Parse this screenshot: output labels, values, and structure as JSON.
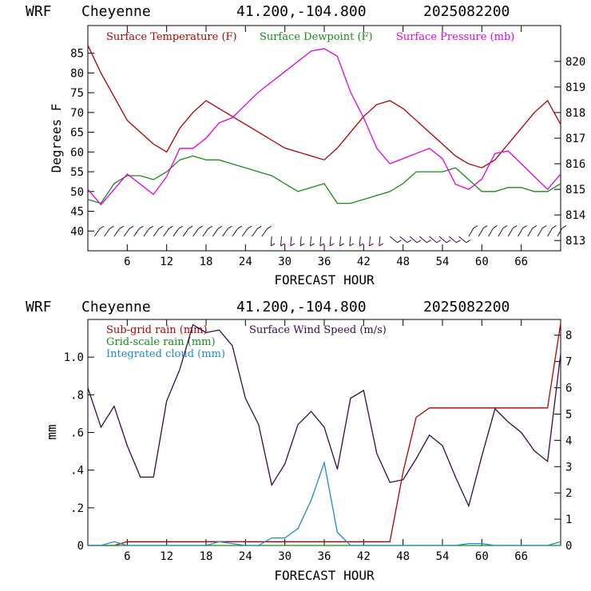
{
  "charts": [
    {
      "header": {
        "model": "WRF",
        "station": "Cheyenne",
        "coords": "41.200,-104.800",
        "run": "2025082200"
      },
      "xlabel": "FORECAST HOUR",
      "ylabel": "Degrees F",
      "x_ticks": [
        "6",
        "12",
        "18",
        "24",
        "30",
        "36",
        "42",
        "48",
        "54",
        "60",
        "66"
      ],
      "y_left_ticks": [
        "40",
        "45",
        "50",
        "55",
        "60",
        "65",
        "70",
        "75",
        "80",
        "85"
      ],
      "y_right_ticks": [
        "813",
        "814",
        "815",
        "816",
        "817",
        "818",
        "819",
        "820"
      ],
      "legend": [
        {
          "label": "Surface Temperature (F)",
          "color": "#b00000"
        },
        {
          "label": "Surface Dewpoint (F)",
          "color": "#1a8a1a"
        },
        {
          "label": "Surface Pressure (mb)",
          "color": "#e000e0"
        }
      ]
    },
    {
      "header": {
        "model": "WRF",
        "station": "Cheyenne",
        "coords": "41.200,-104.800",
        "run": "2025082200"
      },
      "xlabel": "FORECAST HOUR",
      "ylabel": "mm",
      "x_ticks": [
        "6",
        "12",
        "18",
        "24",
        "30",
        "36",
        "42",
        "48",
        "54",
        "60",
        "66"
      ],
      "y_left_ticks": [
        "0",
        ".2",
        ".4",
        ".6",
        ".8",
        "1.0"
      ],
      "y_right_ticks": [
        "0",
        "1",
        "2",
        "3",
        "4",
        "5",
        "6",
        "7",
        "8"
      ],
      "legend": [
        {
          "label": "Sub-grid rain (mm)",
          "color": "#b00000"
        },
        {
          "label": "Surface Wind Speed (m/s)",
          "color": "#3a0a4a"
        },
        {
          "label": "Grid-scale rain (mm)",
          "color": "#1a8a1a"
        },
        {
          "label": "Integrated cloud (mm)",
          "color": "#1e8ad0"
        }
      ]
    }
  ],
  "chart_data": [
    {
      "type": "line",
      "xlim": [
        0,
        72
      ],
      "ylim": [
        35,
        92
      ],
      "y2lim": [
        812.6,
        821.4
      ],
      "x": [
        0,
        2,
        4,
        6,
        8,
        10,
        12,
        14,
        16,
        18,
        20,
        22,
        24,
        26,
        28,
        30,
        32,
        34,
        36,
        38,
        40,
        42,
        44,
        46,
        48,
        50,
        52,
        54,
        56,
        58,
        60,
        62,
        64,
        66,
        68,
        70,
        72
      ],
      "series": [
        {
          "name": "Surface Temperature (F)",
          "axis": "left",
          "values": [
            87,
            80,
            74,
            68,
            65,
            62,
            60,
            66,
            70,
            73,
            71,
            69,
            67,
            65,
            63,
            61,
            60,
            59,
            58,
            61,
            65,
            69,
            72,
            73,
            71,
            68,
            65,
            62,
            59,
            57,
            56,
            58,
            62,
            66,
            70,
            73,
            67
          ]
        },
        {
          "name": "Surface Dewpoint (F)",
          "axis": "left",
          "values": [
            48,
            47,
            52,
            54,
            54,
            53,
            55,
            58,
            59,
            58,
            58,
            57,
            56,
            55,
            54,
            52,
            50,
            51,
            52,
            47,
            47,
            48,
            49,
            50,
            52,
            55,
            55,
            55,
            56,
            53,
            50,
            50,
            51,
            51,
            50,
            50,
            52
          ]
        },
        {
          "name": "Surface Pressure (mb)",
          "axis": "right",
          "values": [
            815,
            814.4,
            815,
            815.6,
            815.2,
            814.8,
            815.5,
            816.6,
            816.6,
            817,
            817.6,
            817.8,
            818.3,
            818.8,
            819.2,
            819.6,
            820,
            820.4,
            820.5,
            820.2,
            818.8,
            817.8,
            816.6,
            816,
            816.2,
            816.4,
            816.6,
            816.2,
            815.2,
            815,
            815.4,
            816.4,
            816.5,
            816,
            815.5,
            815,
            815.6
          ]
        }
      ]
    },
    {
      "type": "line",
      "xlim": [
        0,
        72
      ],
      "ylim": [
        0,
        1.2
      ],
      "y2lim": [
        0,
        8.6
      ],
      "x": [
        0,
        2,
        4,
        6,
        8,
        10,
        12,
        14,
        16,
        18,
        20,
        22,
        24,
        26,
        28,
        30,
        32,
        34,
        36,
        38,
        40,
        42,
        44,
        46,
        48,
        50,
        52,
        54,
        56,
        58,
        60,
        62,
        64,
        66,
        68,
        70,
        72
      ],
      "series": [
        {
          "name": "Surface Wind Speed (m/s)",
          "axis": "right",
          "values": [
            6,
            4.5,
            5.3,
            3.8,
            2.6,
            2.6,
            5.5,
            6.7,
            8.4,
            8.1,
            8.2,
            7.6,
            5.6,
            4.6,
            2.3,
            3.1,
            4.6,
            5.1,
            4.5,
            2.9,
            5.6,
            5.9,
            3.5,
            2.4,
            2.5,
            3.3,
            4.2,
            3.8,
            2.6,
            1.5,
            3.4,
            5.2,
            4.7,
            4.3,
            3.6,
            3.2,
            7.3
          ]
        },
        {
          "name": "Sub-grid rain (mm)",
          "axis": "left",
          "values": [
            0,
            0,
            0,
            0.02,
            0.02,
            0.02,
            0.02,
            0.02,
            0.02,
            0.02,
            0.02,
            0.02,
            0.02,
            0.02,
            0.02,
            0.02,
            0.02,
            0.02,
            0.02,
            0.02,
            0.02,
            0.02,
            0.02,
            0.02,
            0.39,
            0.68,
            0.73,
            0.73,
            0.73,
            0.73,
            0.73,
            0.73,
            0.73,
            0.73,
            0.73,
            0.73,
            1.18
          ]
        },
        {
          "name": "Grid-scale rain (mm)",
          "axis": "left",
          "values": [
            0,
            0,
            0,
            0,
            0,
            0,
            0,
            0,
            0,
            0,
            0,
            0,
            0,
            0,
            0,
            0,
            0,
            0,
            0,
            0,
            0,
            0,
            0,
            0,
            0,
            0,
            0,
            0,
            0,
            0,
            0,
            0,
            0,
            0,
            0,
            0,
            0
          ]
        },
        {
          "name": "Integrated cloud (mm)",
          "axis": "left",
          "values": [
            0,
            0,
            0.02,
            0,
            0,
            0,
            0,
            0,
            0,
            0,
            0.02,
            0.01,
            0,
            0,
            0.04,
            0.04,
            0.09,
            0.24,
            0.44,
            0.07,
            0,
            0,
            0,
            0,
            0,
            0,
            0,
            0,
            0,
            0.01,
            0.01,
            0,
            0,
            0,
            0,
            0,
            0.02
          ]
        }
      ]
    }
  ]
}
